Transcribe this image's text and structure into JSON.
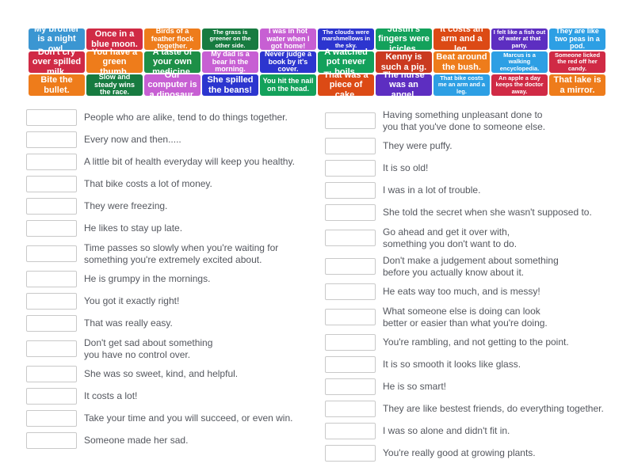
{
  "activity": {
    "type_hint": "match-up drag-and-drop idioms activity",
    "background_color": "#ffffff",
    "text_color": "#54575e",
    "box_border_color": "#c9c9c9"
  },
  "palette": {
    "blue": "#3b96d2",
    "crimson": "#d02a45",
    "orange": "#ee7c1b",
    "dark_green": "#177b40",
    "orchid": "#c75fd3",
    "royal_blue": "#2c35cf",
    "emerald": "#13a15b",
    "green": "#1d8f47",
    "vermilion": "#dc4a15",
    "red": "#ca3a20",
    "purple": "#5d2ec1",
    "light_blue": "#2d9fe4"
  },
  "tiles": {
    "rows": [
      [
        {
          "text": "My brother is a night owl.",
          "color": "blue",
          "size": "lg"
        },
        {
          "text": "Once in a blue moon.",
          "color": "crimson",
          "size": "lg"
        },
        {
          "text": "Birds of a feather flock together.",
          "color": "orange",
          "size": "md"
        },
        {
          "text": "The grass is greener on the other side.",
          "color": "dark_green",
          "size": "sm"
        },
        {
          "text": "I was in hot water when I got home!",
          "color": "orchid",
          "size": "md"
        },
        {
          "text": "The clouds were marshmellows in the sky.",
          "color": "royal_blue",
          "size": "sm"
        },
        {
          "text": "Justin's fingers were icicles.",
          "color": "emerald",
          "size": "lg"
        },
        {
          "text": "It costs an arm and a leg.",
          "color": "vermilion",
          "size": "lg"
        },
        {
          "text": "I felt like a fish out of water at that party.",
          "color": "purple",
          "size": "sm"
        },
        {
          "text": "They are like two peas in a pod.",
          "color": "light_blue",
          "size": "md"
        }
      ],
      [
        {
          "text": "Don't cry over spilled milk.",
          "color": "crimson",
          "size": "lg"
        },
        {
          "text": "You have a green thumb.",
          "color": "orange",
          "size": "lg"
        },
        {
          "text": "A taste of your own medicine.",
          "color": "green",
          "size": "lg"
        },
        {
          "text": "My dad is a bear in the morning.",
          "color": "orchid",
          "size": "md"
        },
        {
          "text": "Never judge a book by it's cover.",
          "color": "royal_blue",
          "size": "md"
        },
        {
          "text": "A watched pot never boils.",
          "color": "emerald",
          "size": "lg"
        },
        {
          "text": "Kenny is such a pig.",
          "color": "red",
          "size": "lg"
        },
        {
          "text": "Beat around the bush.",
          "color": "orange",
          "size": "lg"
        },
        {
          "text": "Marcus is a walking encyclopedia.",
          "color": "light_blue",
          "size": "sm"
        },
        {
          "text": "Someone licked the red off her candy.",
          "color": "crimson",
          "size": "sm"
        }
      ],
      [
        {
          "text": "Bite the bullet.",
          "color": "orange",
          "size": "lg"
        },
        {
          "text": "Slow and steady wins the race.",
          "color": "dark_green",
          "size": "md"
        },
        {
          "text": "Our computer is a dinosaur.",
          "color": "orchid",
          "size": "lg"
        },
        {
          "text": "She spilled the beans!",
          "color": "royal_blue",
          "size": "lg"
        },
        {
          "text": "You hit the nail on the head.",
          "color": "emerald",
          "size": "md"
        },
        {
          "text": "That was a piece of cake.",
          "color": "vermilion",
          "size": "lg"
        },
        {
          "text": "The nurse was an angel.",
          "color": "purple",
          "size": "lg"
        },
        {
          "text": "That bike costs me an arm and a leg.",
          "color": "light_blue",
          "size": "sm"
        },
        {
          "text": "An apple a day keeps the doctor away.",
          "color": "crimson",
          "size": "sm"
        },
        {
          "text": "That lake is a mirror.",
          "color": "orange",
          "size": "lg"
        }
      ]
    ]
  },
  "match": {
    "left": [
      {
        "text": "People who are alike, tend to do things together."
      },
      {
        "text": "Every now and then....."
      },
      {
        "text": "A little bit of health everyday will keep you healthy."
      },
      {
        "text": "That bike costs a lot of money."
      },
      {
        "text": "They were freezing."
      },
      {
        "text": "He likes to stay up late."
      },
      {
        "text": "Time passes so slowly when you're waiting for\nsomething you're extremely excited about."
      },
      {
        "text": "He is grumpy in the mornings."
      },
      {
        "text": "You got it exactly right!"
      },
      {
        "text": "That was really easy."
      },
      {
        "text": "Don't get sad about something\nyou have no control over."
      },
      {
        "text": "She was so sweet, kind, and helpful."
      },
      {
        "text": "It costs a lot!"
      },
      {
        "text": "Take your time and you will succeed, or even win."
      },
      {
        "text": "Someone made her sad."
      }
    ],
    "right": [
      {
        "text": "Having something unpleasant done to\nyou that you've done to someone else."
      },
      {
        "text": "They were puffy."
      },
      {
        "text": "It is so old!"
      },
      {
        "text": "I was in a lot of trouble."
      },
      {
        "text": "She told the secret when she wasn't supposed to."
      },
      {
        "text": "Go ahead and get it over with,\nsomething you don't want to do."
      },
      {
        "text": "Don't make a judgement about something\nbefore you actually know about it."
      },
      {
        "text": "He eats way too much, and is messy!"
      },
      {
        "text": "What someone else is doing can look\nbetter or easier than what you're doing."
      },
      {
        "text": "You're rambling, and not getting to the point."
      },
      {
        "text": "It is so smooth it looks like glass."
      },
      {
        "text": "He is so smart!"
      },
      {
        "text": "They are like bestest friends, do everything together."
      },
      {
        "text": "I was so alone and didn't fit in."
      },
      {
        "text": "You're really good at growing plants."
      }
    ]
  }
}
